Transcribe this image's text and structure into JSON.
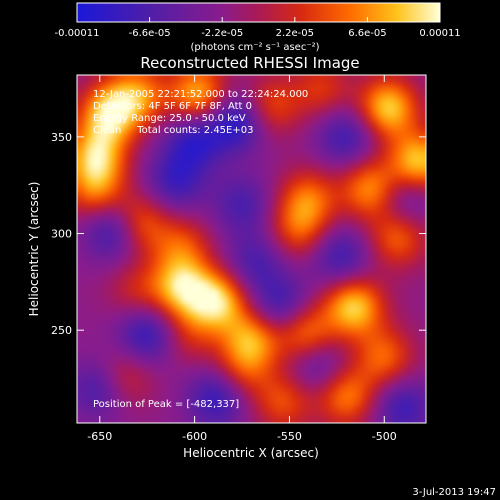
{
  "chart_data": {
    "type": "heatmap",
    "title": "Reconstructed RHESSI Image",
    "xlabel": "Heliocentric X (arcsec)",
    "ylabel": "Heliocentric Y (arcsec)",
    "xlim": [
      -662,
      -478
    ],
    "ylim": [
      202,
      382
    ],
    "xticks": [
      -650,
      -600,
      -550,
      -500
    ],
    "xtick_labels": [
      "-650",
      "-600",
      "-550",
      "-500"
    ],
    "yticks": [
      250,
      300,
      350
    ],
    "ytick_labels": [
      "250",
      "300",
      "350"
    ],
    "colorbar": {
      "min": -0.00011,
      "max": 0.00011,
      "ticks": [
        -0.00011,
        -6.6e-05,
        -2.2e-05,
        2.2e-05,
        6.6e-05,
        0.00011
      ],
      "tick_labels": [
        "-0.00011",
        "-6.6e-05",
        "-2.2e-05",
        "2.2e-05",
        "6.6e-05",
        "0.00011"
      ],
      "unit_label": "(photons cm⁻² s⁻¹ asec⁻²)"
    },
    "annotations": [
      "12-Jan-2005 22:21:52.000 to 22:24:24.000",
      "Detectors: 4F 5F 6F 7F 8F, Att 0",
      "Energy Range: 25.0 - 50.0 keV",
      "Clean     Total counts: 2.45E+03",
      "Position of Peak = [-482,337]"
    ],
    "peak": [
      -482,
      337
    ],
    "sources": [
      {
        "x": -645,
        "y": 362,
        "v": 0.00011
      },
      {
        "x": -630,
        "y": 372,
        "v": 8e-05
      },
      {
        "x": -598,
        "y": 372,
        "v": 0.0001
      },
      {
        "x": -560,
        "y": 366,
        "v": 6e-05
      },
      {
        "x": -533,
        "y": 375,
        "v": 5e-05
      },
      {
        "x": -498,
        "y": 365,
        "v": 0.00011
      },
      {
        "x": -482,
        "y": 337,
        "v": 0.00011
      },
      {
        "x": -507,
        "y": 323,
        "v": 9e-05
      },
      {
        "x": -540,
        "y": 318,
        "v": 7e-05
      },
      {
        "x": -545,
        "y": 302,
        "v": 6e-05
      },
      {
        "x": -493,
        "y": 298,
        "v": 7e-05
      },
      {
        "x": -652,
        "y": 340,
        "v": 0.0001
      },
      {
        "x": -652,
        "y": 322,
        "v": 7e-05
      },
      {
        "x": -630,
        "y": 305,
        "v": 8e-05
      },
      {
        "x": -607,
        "y": 272,
        "v": 0.0001
      },
      {
        "x": -588,
        "y": 265,
        "v": 0.00011
      },
      {
        "x": -607,
        "y": 293,
        "v": 6e-05
      },
      {
        "x": -570,
        "y": 245,
        "v": 9e-05
      },
      {
        "x": -541,
        "y": 248,
        "v": 8e-05
      },
      {
        "x": -516,
        "y": 262,
        "v": 0.00011
      },
      {
        "x": -500,
        "y": 236,
        "v": 7e-05
      },
      {
        "x": -520,
        "y": 216,
        "v": 8e-05
      },
      {
        "x": -553,
        "y": 213,
        "v": 6e-05
      },
      {
        "x": -638,
        "y": 225,
        "v": 5e-05
      },
      {
        "x": -630,
        "y": 270,
        "v": 4e-05
      },
      {
        "x": -603,
        "y": 248,
        "v": 4e-05
      },
      {
        "x": -575,
        "y": 228,
        "v": 5e-05
      },
      {
        "x": -642,
        "y": 302,
        "v": -8e-05
      },
      {
        "x": -600,
        "y": 348,
        "v": -7e-05
      },
      {
        "x": -578,
        "y": 358,
        "v": -8e-05
      },
      {
        "x": -610,
        "y": 327,
        "v": -6e-05
      },
      {
        "x": -575,
        "y": 315,
        "v": -5e-05
      },
      {
        "x": -520,
        "y": 350,
        "v": -6e-05
      },
      {
        "x": -490,
        "y": 318,
        "v": -5e-05
      },
      {
        "x": -568,
        "y": 285,
        "v": -5e-05
      },
      {
        "x": -523,
        "y": 288,
        "v": -6e-05
      },
      {
        "x": -625,
        "y": 248,
        "v": -7e-05
      },
      {
        "x": -555,
        "y": 263,
        "v": -6e-05
      },
      {
        "x": -588,
        "y": 215,
        "v": -7e-05
      },
      {
        "x": -650,
        "y": 220,
        "v": -6e-05
      },
      {
        "x": -490,
        "y": 210,
        "v": -6e-05
      },
      {
        "x": -535,
        "y": 232,
        "v": -5e-05
      }
    ]
  },
  "footer": {
    "date": "3-Jul-2013 19:47"
  }
}
